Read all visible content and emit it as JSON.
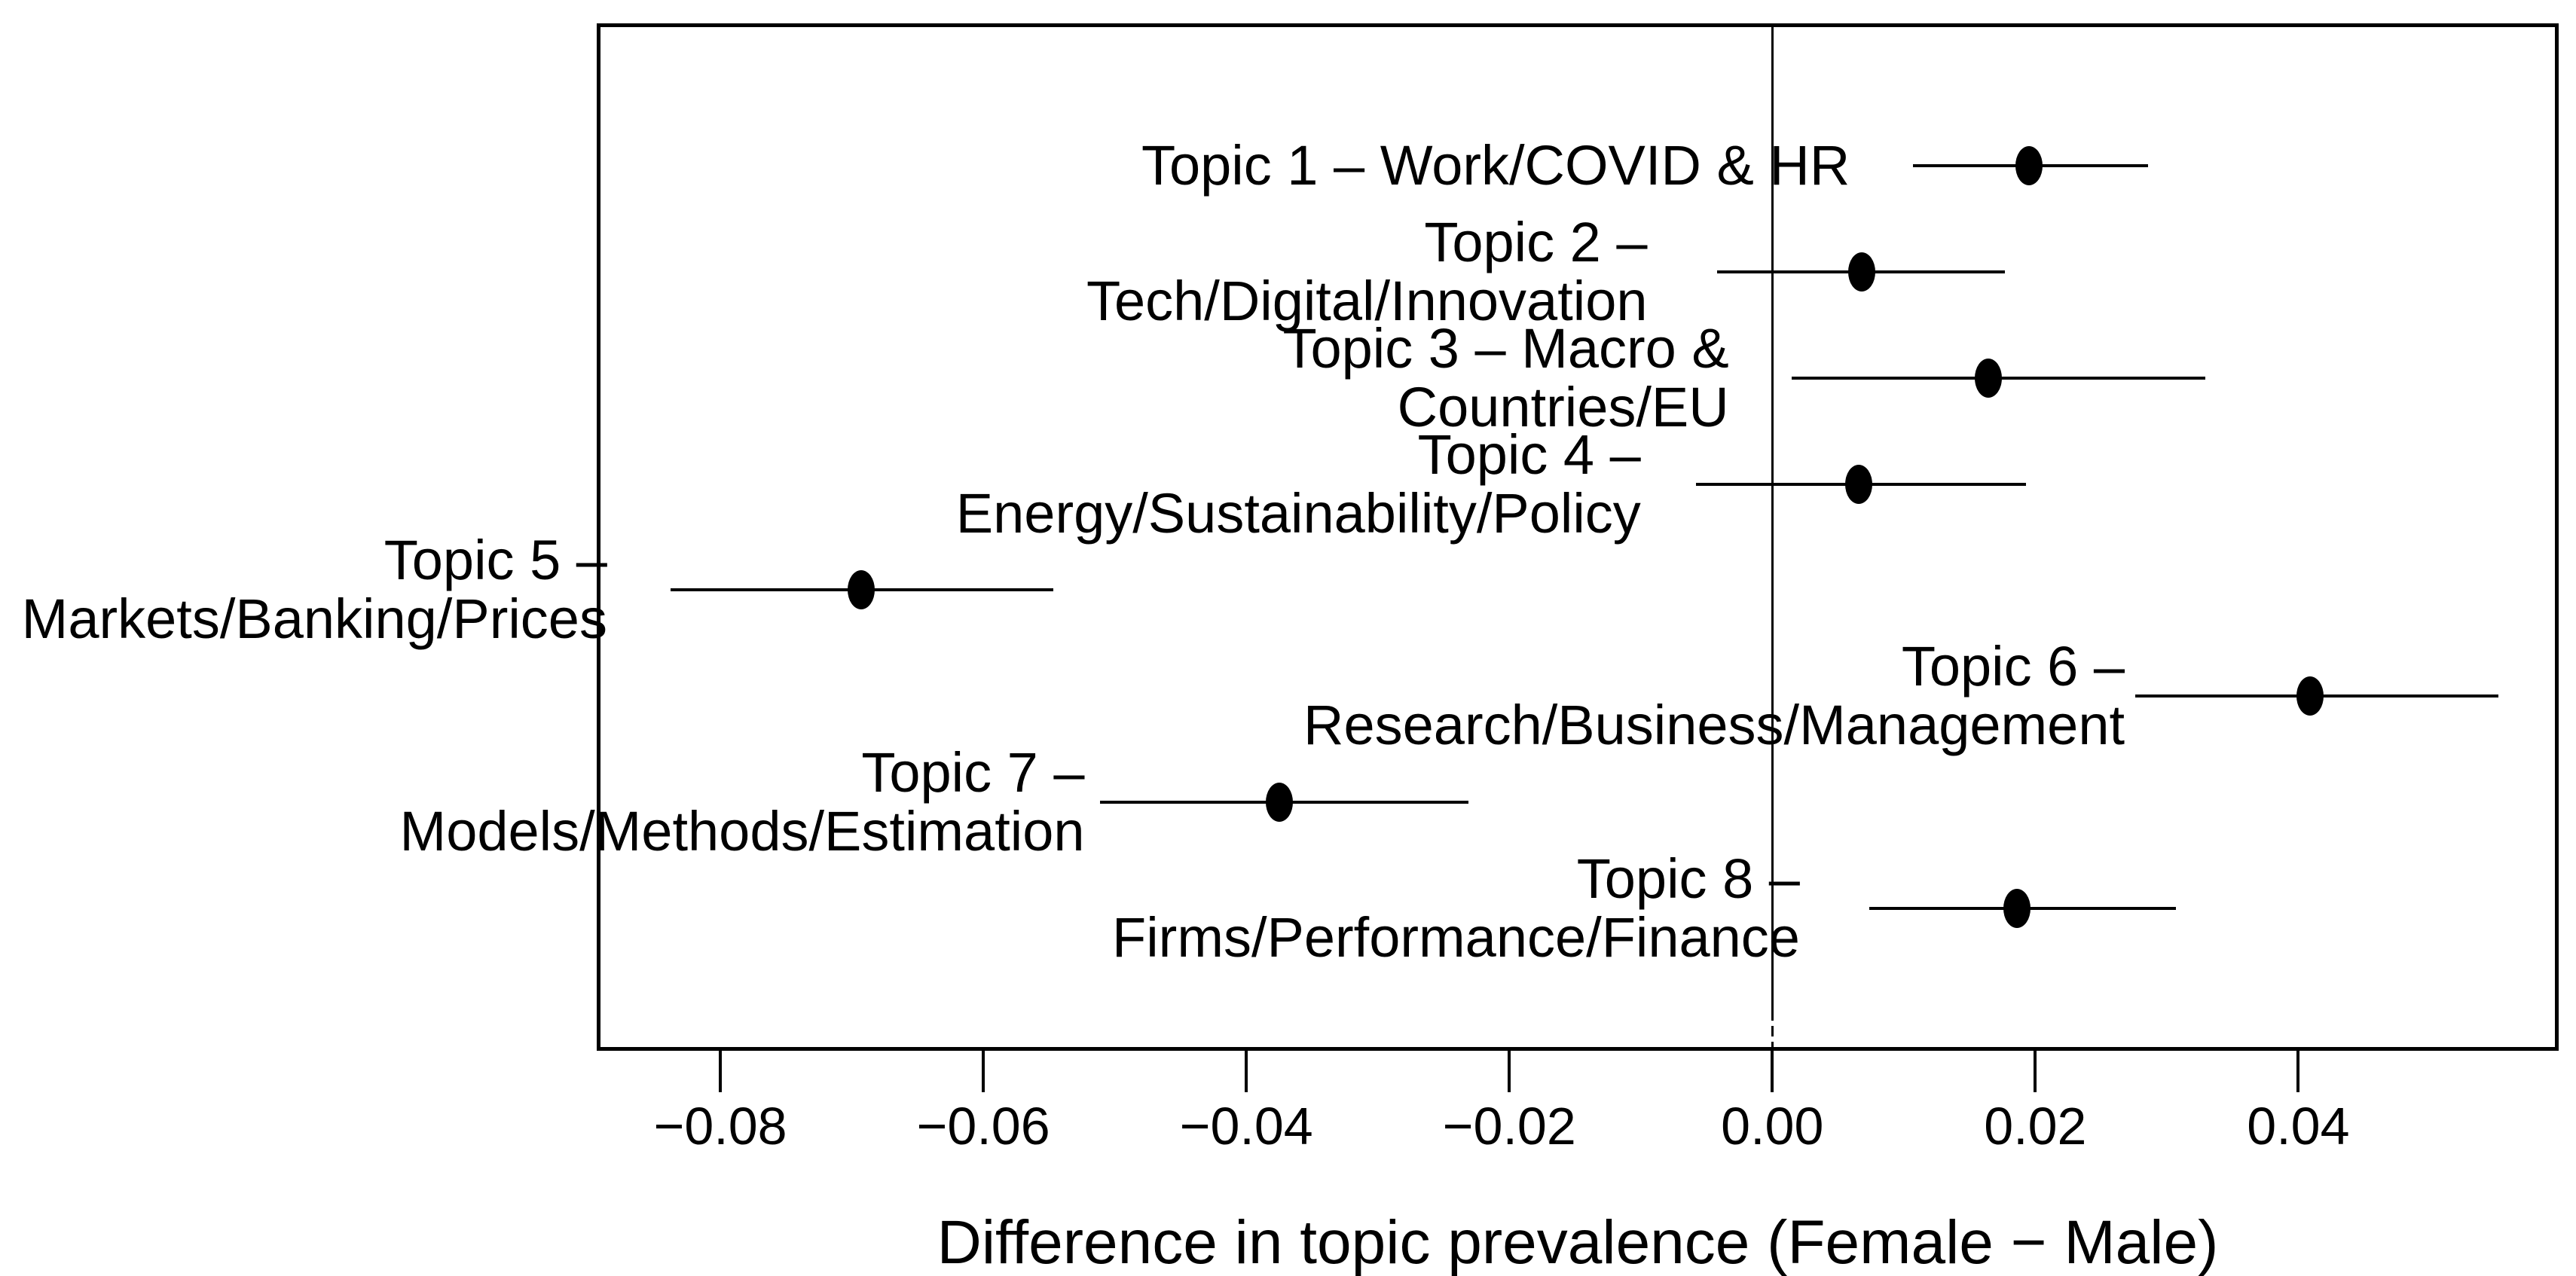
{
  "figure": {
    "background_color": "#ffffff",
    "ink_color": "#000000"
  },
  "chart_data": {
    "type": "scatter",
    "subtype": "dot-and-ci-forest-plot",
    "title": "",
    "xlabel": "Difference in topic prevalence (Female − Male)",
    "ylabel": "",
    "grid": false,
    "legend": false,
    "xlim": [
      -0.0894,
      0.0598
    ],
    "reference_line_x": 0.0,
    "x_ticks": [
      {
        "value": -0.08,
        "label": "−0.08"
      },
      {
        "value": -0.06,
        "label": "−0.06"
      },
      {
        "value": -0.04,
        "label": "−0.04"
      },
      {
        "value": -0.02,
        "label": "−0.02"
      },
      {
        "value": 0.0,
        "label": "0.00"
      },
      {
        "value": 0.02,
        "label": "0.02"
      },
      {
        "value": 0.04,
        "label": "0.04"
      }
    ],
    "topics": [
      {
        "id": 1,
        "label_lines": [
          "Topic 1 – Work/COVID & HR"
        ],
        "estimate": 0.0195,
        "ci_low": 0.0107,
        "ci_high": 0.0286,
        "label_anchor_x": 0.0059
      },
      {
        "id": 2,
        "label_lines": [
          "Topic 2 –",
          "Tech/Digital/Innovation"
        ],
        "estimate": 0.0068,
        "ci_low": -0.0042,
        "ci_high": 0.0177,
        "label_anchor_x": -0.0095
      },
      {
        "id": 3,
        "label_lines": [
          "Topic 3 – Macro &",
          "Countries/EU"
        ],
        "estimate": 0.0164,
        "ci_low": 0.0015,
        "ci_high": 0.0329,
        "label_anchor_x": -0.0033
      },
      {
        "id": 4,
        "label_lines": [
          "Topic 4 –",
          "Energy/Sustainability/Policy"
        ],
        "estimate": 0.0066,
        "ci_low": -0.0058,
        "ci_high": 0.0193,
        "label_anchor_x": -0.01
      },
      {
        "id": 5,
        "label_lines": [
          "Topic 5 –",
          "Markets/Banking/Prices"
        ],
        "estimate": -0.0693,
        "ci_low": -0.0838,
        "ci_high": -0.0547,
        "label_anchor_x": -0.0886
      },
      {
        "id": 6,
        "label_lines": [
          "Topic 6 –",
          "Research/Business/Management"
        ],
        "estimate": 0.0409,
        "ci_low": 0.0276,
        "ci_high": 0.0552,
        "label_anchor_x": 0.0268
      },
      {
        "id": 7,
        "label_lines": [
          "Topic 7 –",
          "Models/Methods/Estimation"
        ],
        "estimate": -0.0375,
        "ci_low": -0.0511,
        "ci_high": -0.0231,
        "label_anchor_x": -0.0523
      },
      {
        "id": 8,
        "label_lines": [
          "Topic 8 –",
          "Firms/Performance/Finance"
        ],
        "estimate": 0.0186,
        "ci_low": 0.0074,
        "ci_high": 0.0307,
        "label_anchor_x": 0.0021
      }
    ]
  }
}
